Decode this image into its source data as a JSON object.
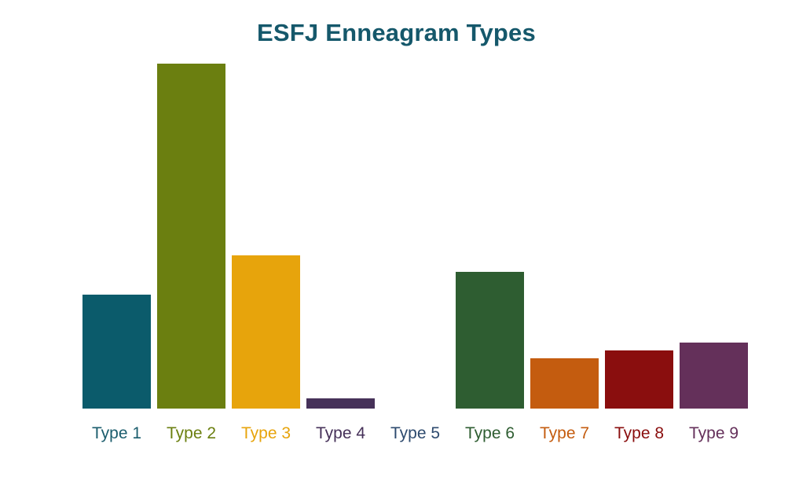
{
  "chart_data": {
    "type": "bar",
    "title": "ESFJ Enneagram Types",
    "title_color": "#15586b",
    "background_color": "#ffffff",
    "xlabel": "",
    "ylabel": "",
    "grid": false,
    "legend": false,
    "axis_tick_labels_shown": false,
    "ylim": [
      0,
      40
    ],
    "categories": [
      "Type 1",
      "Type 2",
      "Type 3",
      "Type 4",
      "Type 5",
      "Type 6",
      "Type 7",
      "Type 8",
      "Type 9"
    ],
    "values": [
      12.2,
      37.0,
      16.4,
      1.1,
      0,
      14.7,
      5.4,
      6.2,
      7.1
    ],
    "bar_colors": [
      "#0b5b6b",
      "#6b7f10",
      "#e7a40c",
      "#463159",
      "#2d4a6e",
      "#2e5d31",
      "#c45c0f",
      "#8a0e0e",
      "#64305a"
    ],
    "label_colors": [
      "#1b5d6d",
      "#6b7f10",
      "#e7a40c",
      "#463159",
      "#2d4a6e",
      "#2e5d31",
      "#c45c0f",
      "#8a0e0e",
      "#64305a"
    ]
  }
}
